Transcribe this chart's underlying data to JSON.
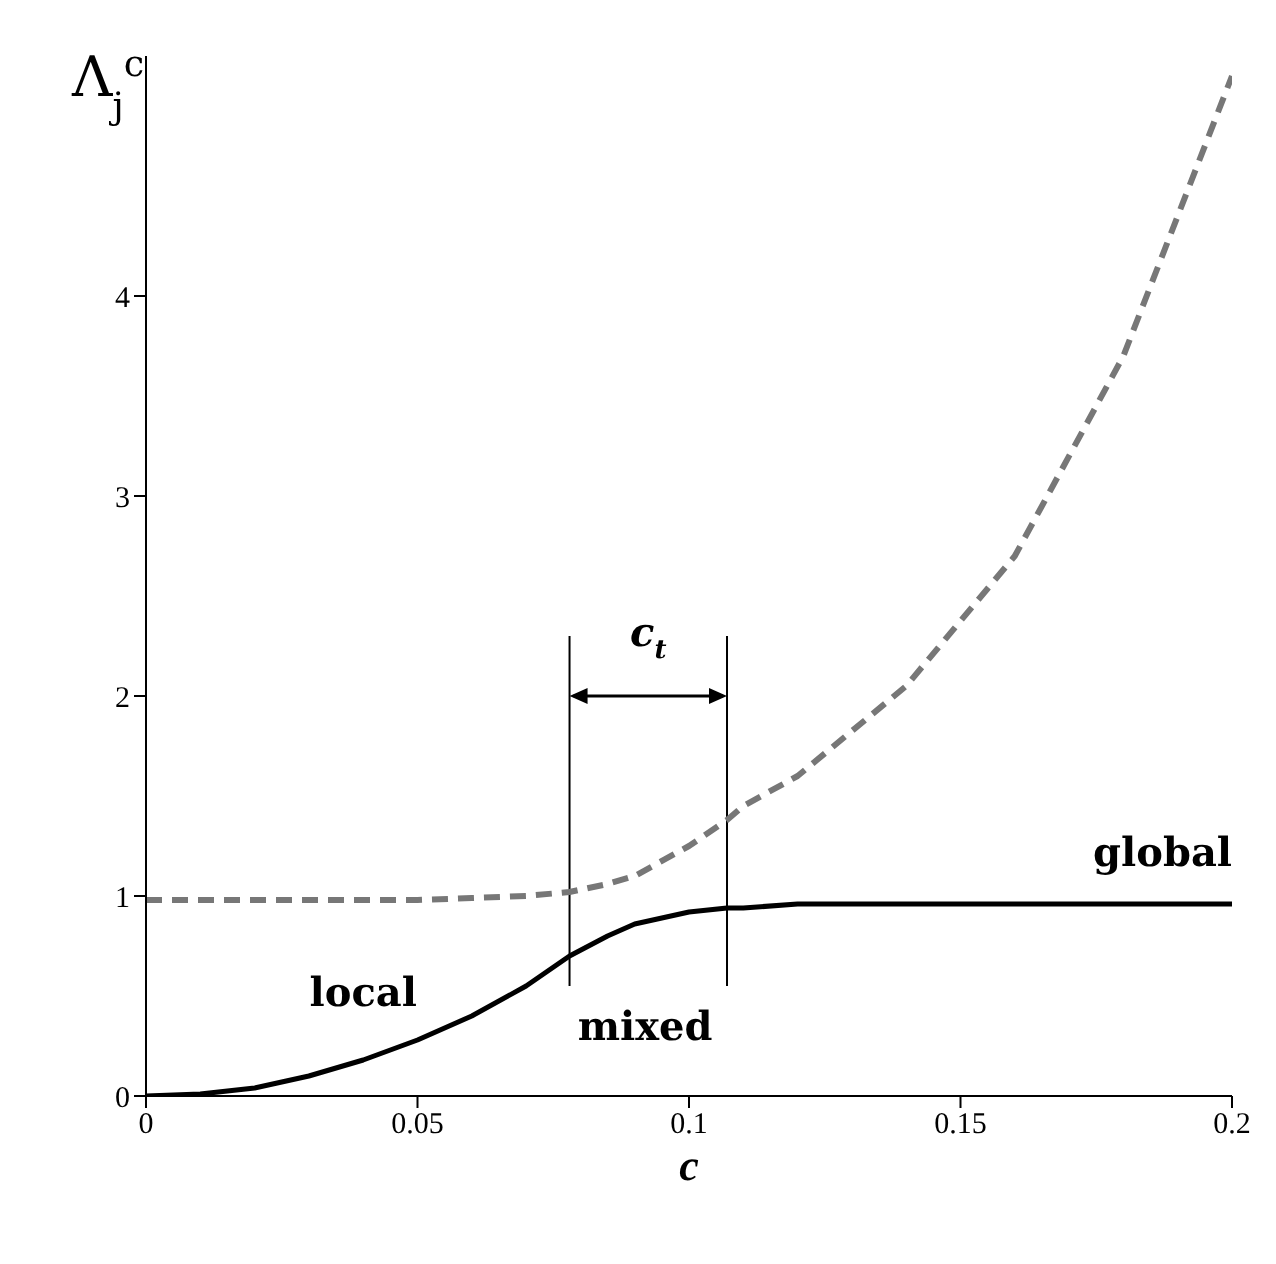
{
  "chart_data": {
    "type": "line",
    "xlabel": "c",
    "ylabel": "Λ$_{j}$$^{c}$",
    "x": [
      0,
      0.01,
      0.02,
      0.03,
      0.04,
      0.05,
      0.06,
      0.07,
      0.078,
      0.085,
      0.09,
      0.1,
      0.107,
      0.11,
      0.12,
      0.14,
      0.16,
      0.18,
      0.2
    ],
    "series": [
      {
        "color": "#777777",
        "line_style": "dashed",
        "values": [
          0.98,
          0.98,
          0.98,
          0.98,
          0.98,
          0.98,
          0.99,
          1.0,
          1.02,
          1.06,
          1.1,
          1.25,
          1.38,
          1.45,
          1.6,
          2.05,
          2.7,
          3.7,
          5.1
        ]
      },
      {
        "color": "#000000",
        "line_style": "solid",
        "values": [
          0,
          0.01,
          0.04,
          0.1,
          0.18,
          0.28,
          0.4,
          0.55,
          0.7,
          0.8,
          0.86,
          0.92,
          0.94,
          0.94,
          0.96,
          0.96,
          0.96,
          0.96,
          0.96
        ]
      }
    ],
    "xlim": [
      0,
      0.2
    ],
    "xticks": [
      0,
      0.05,
      0.1,
      0.15,
      0.2
    ],
    "ylim": [
      0,
      5.2
    ],
    "yticks": [
      0,
      1,
      2,
      3,
      4
    ],
    "grid": false,
    "legend": false,
    "marker": "none",
    "ref_lines": [
      {
        "axis": "x",
        "value": 0.078,
        "color": "#000000"
      },
      {
        "axis": "x",
        "value": 0.107,
        "color": "#000000"
      }
    ],
    "annotations": [
      "c$_{t}$",
      "local",
      "mixed",
      "global"
    ]
  }
}
